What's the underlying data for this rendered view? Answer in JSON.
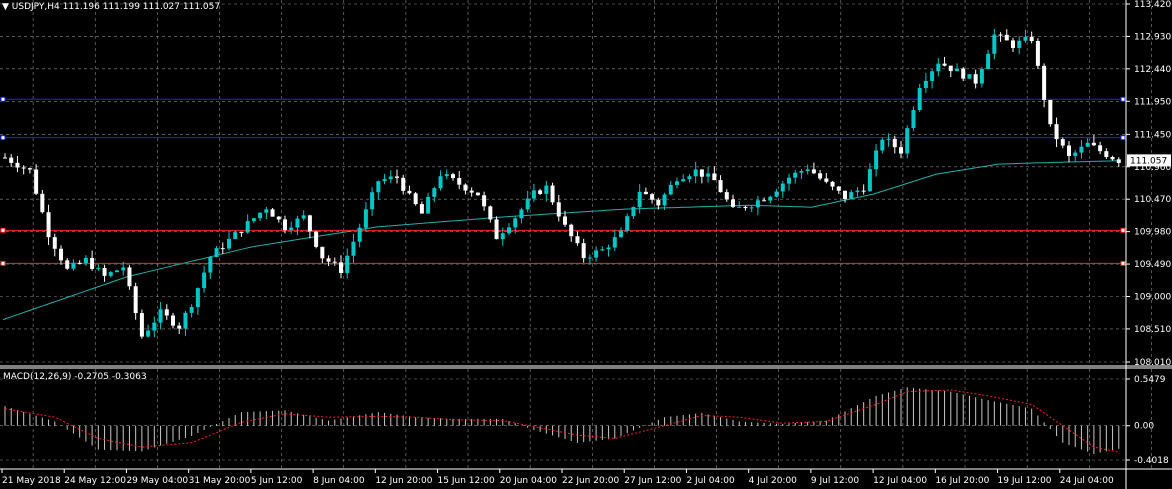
{
  "symbol_header": {
    "symbol": "USDJPY,H4",
    "ohlc": "111.196 111.199 111.027 111.057"
  },
  "macd_header": {
    "label": "MACD(12,26,9)",
    "values": "-0.2705 -0.3063"
  },
  "current_price_label": "111.057",
  "colors": {
    "background": "#000000",
    "grid": "#8c8c8c",
    "bull_candle": "#00c8c8",
    "bear_candle": "#ffffff",
    "moving_average": "#20b2aa",
    "blue_level": "#2020ff",
    "red_level": "#ff2020",
    "macd_histogram": "#c8c8c8",
    "macd_signal": "#ff2020",
    "text": "#ffffff"
  },
  "chart_data": [
    {
      "type": "candlestick",
      "title": "USDJPY,H4",
      "y_ticks": [
        "113.420",
        "112.930",
        "112.440",
        "111.950",
        "111.450",
        "110.960",
        "110.470",
        "109.980",
        "109.490",
        "109.000",
        "108.510",
        "108.010"
      ],
      "ylim": [
        108.01,
        113.42
      ],
      "x_ticks": [
        "21 May 2018",
        "24 May 12:00",
        "29 May 04:00",
        "31 May 20:00",
        "5 Jun 12:00",
        "8 Jun 04:00",
        "12 Jun 20:00",
        "15 Jun 12:00",
        "20 Jun 04:00",
        "22 Jun 20:00",
        "27 Jun 12:00",
        "2 Jul 04:00",
        "4 Jul 20:00",
        "9 Jul 12:00",
        "12 Jul 04:00",
        "16 Jul 20:00",
        "19 Jul 12:00",
        "24 Jul 04:00"
      ],
      "grid": true,
      "horizontal_levels": [
        {
          "price": 111.98,
          "color": "blue"
        },
        {
          "price": 111.4,
          "color": "blue"
        },
        {
          "price": 110.0,
          "color": "red"
        },
        {
          "price": 109.5,
          "color": "red"
        }
      ],
      "close_path": [
        [
          0,
          111.1
        ],
        [
          4,
          110.9
        ],
        [
          7,
          109.95
        ],
        [
          10,
          109.4
        ],
        [
          13,
          109.55
        ],
        [
          16,
          109.3
        ],
        [
          19,
          109.45
        ],
        [
          22,
          108.4
        ],
        [
          25,
          108.75
        ],
        [
          28,
          108.55
        ],
        [
          30,
          108.9
        ],
        [
          33,
          109.6
        ],
        [
          36,
          109.85
        ],
        [
          39,
          110.1
        ],
        [
          42,
          110.35
        ],
        [
          45,
          110.05
        ],
        [
          48,
          110.2
        ],
        [
          51,
          109.6
        ],
        [
          54,
          109.4
        ],
        [
          57,
          110.05
        ],
        [
          60,
          110.75
        ],
        [
          63,
          110.8
        ],
        [
          65,
          110.5
        ],
        [
          67,
          110.25
        ],
        [
          70,
          110.85
        ],
        [
          73,
          110.7
        ],
        [
          76,
          110.55
        ],
        [
          79,
          109.9
        ],
        [
          82,
          110.2
        ],
        [
          85,
          110.55
        ],
        [
          87,
          110.65
        ],
        [
          90,
          110.05
        ],
        [
          93,
          109.6
        ],
        [
          96,
          109.7
        ],
        [
          99,
          109.95
        ],
        [
          102,
          110.6
        ],
        [
          105,
          110.4
        ],
        [
          108,
          110.8
        ],
        [
          111,
          110.9
        ],
        [
          114,
          110.75
        ],
        [
          117,
          110.3
        ],
        [
          120,
          110.4
        ],
        [
          123,
          110.55
        ],
        [
          126,
          110.8
        ],
        [
          129,
          110.95
        ],
        [
          132,
          110.7
        ],
        [
          135,
          110.5
        ],
        [
          138,
          110.65
        ],
        [
          141,
          111.4
        ],
        [
          144,
          111.2
        ],
        [
          147,
          112.2
        ],
        [
          150,
          112.55
        ],
        [
          153,
          112.4
        ],
        [
          156,
          112.25
        ],
        [
          159,
          112.95
        ],
        [
          162,
          112.8
        ],
        [
          165,
          112.9
        ],
        [
          168,
          111.55
        ],
        [
          171,
          111.1
        ],
        [
          174,
          111.3
        ],
        [
          177,
          111.15
        ],
        [
          179,
          111.057
        ]
      ],
      "ma_path": [
        [
          0,
          108.65
        ],
        [
          20,
          109.3
        ],
        [
          40,
          109.75
        ],
        [
          60,
          110.05
        ],
        [
          80,
          110.2
        ],
        [
          100,
          110.32
        ],
        [
          120,
          110.38
        ],
        [
          130,
          110.35
        ],
        [
          140,
          110.55
        ],
        [
          150,
          110.85
        ],
        [
          160,
          111.0
        ],
        [
          170,
          111.03
        ],
        [
          179,
          111.05
        ]
      ]
    },
    {
      "type": "histogram",
      "title": "MACD(12,26,9)",
      "y_ticks": [
        "0.5479",
        "0.00",
        "-0.4018"
      ],
      "ylim": [
        -0.4018,
        0.5479
      ],
      "histogram_path": [
        [
          0,
          0.23
        ],
        [
          8,
          0.05
        ],
        [
          15,
          -0.28
        ],
        [
          22,
          -0.3
        ],
        [
          30,
          -0.12
        ],
        [
          38,
          0.16
        ],
        [
          45,
          0.18
        ],
        [
          52,
          0.06
        ],
        [
          60,
          0.16
        ],
        [
          66,
          0.1
        ],
        [
          72,
          0.08
        ],
        [
          80,
          0.08
        ],
        [
          85,
          -0.05
        ],
        [
          92,
          -0.2
        ],
        [
          98,
          -0.15
        ],
        [
          106,
          0.1
        ],
        [
          112,
          0.15
        ],
        [
          118,
          0.05
        ],
        [
          125,
          0.02
        ],
        [
          132,
          0.06
        ],
        [
          140,
          0.35
        ],
        [
          145,
          0.45
        ],
        [
          152,
          0.4
        ],
        [
          158,
          0.3
        ],
        [
          165,
          0.2
        ],
        [
          170,
          -0.2
        ],
        [
          175,
          -0.33
        ],
        [
          179,
          -0.27
        ]
      ],
      "signal_path": [
        [
          0,
          0.2
        ],
        [
          8,
          0.1
        ],
        [
          15,
          -0.15
        ],
        [
          22,
          -0.25
        ],
        [
          30,
          -0.2
        ],
        [
          38,
          0.04
        ],
        [
          45,
          0.14
        ],
        [
          52,
          0.1
        ],
        [
          60,
          0.11
        ],
        [
          66,
          0.1
        ],
        [
          72,
          0.07
        ],
        [
          80,
          0.06
        ],
        [
          85,
          -0.01
        ],
        [
          92,
          -0.11
        ],
        [
          98,
          -0.15
        ],
        [
          106,
          0.0
        ],
        [
          112,
          0.12
        ],
        [
          118,
          0.1
        ],
        [
          125,
          0.03
        ],
        [
          132,
          0.05
        ],
        [
          140,
          0.25
        ],
        [
          145,
          0.4
        ],
        [
          152,
          0.42
        ],
        [
          158,
          0.35
        ],
        [
          165,
          0.25
        ],
        [
          170,
          0.0
        ],
        [
          175,
          -0.25
        ],
        [
          179,
          -0.31
        ]
      ]
    }
  ]
}
